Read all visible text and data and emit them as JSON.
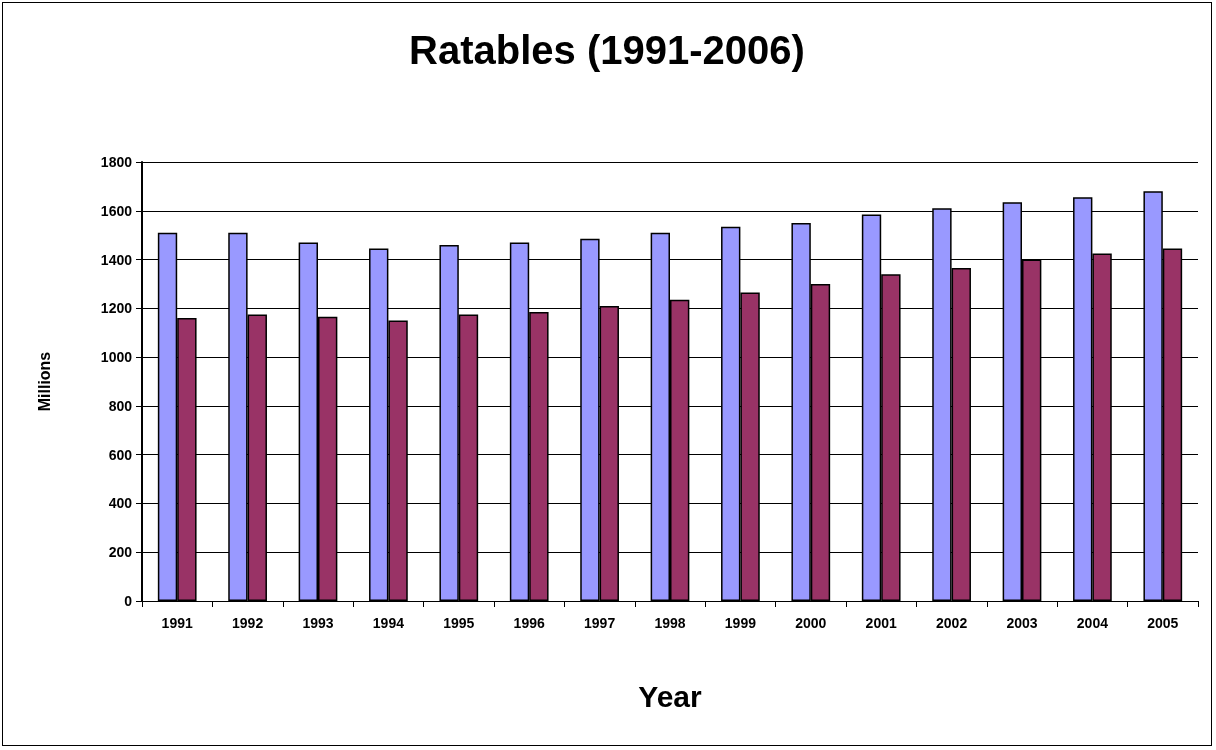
{
  "chart_data": {
    "type": "bar",
    "title": "Ratables (1991-2006)",
    "xlabel": "Year",
    "ylabel": "Millions",
    "categories": [
      "1991",
      "1992",
      "1993",
      "1994",
      "1995",
      "1996",
      "1997",
      "1998",
      "1999",
      "2000",
      "2001",
      "2002",
      "2003",
      "2004",
      "2005"
    ],
    "series": [
      {
        "color": "#9999ff",
        "values": [
          1510,
          1510,
          1470,
          1445,
          1460,
          1470,
          1485,
          1510,
          1535,
          1550,
          1585,
          1610,
          1635,
          1655,
          1680
        ]
      },
      {
        "color": "#993366",
        "values": [
          1160,
          1175,
          1165,
          1150,
          1175,
          1185,
          1210,
          1235,
          1265,
          1300,
          1340,
          1365,
          1400,
          1425,
          1445
        ]
      }
    ],
    "ylim": [
      0,
      1800
    ],
    "yticks": [
      0,
      200,
      400,
      600,
      800,
      1000,
      1200,
      1400,
      1600,
      1800
    ],
    "grid": "y"
  }
}
